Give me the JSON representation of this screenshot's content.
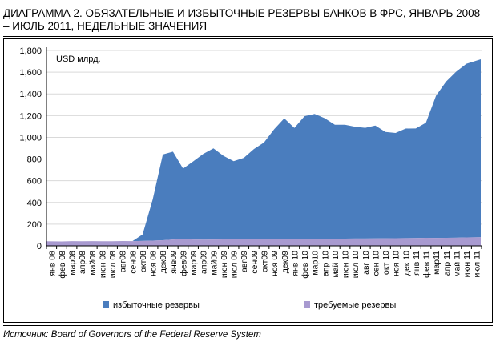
{
  "title": {
    "line1": "ДИАГРАММА 2. ОБЯЗАТЕЛЬНЫЕ И ИЗБЫТОЧНЫЕ РЕЗЕРВЫ БАНКОВ В ФРС, ЯНВАРЬ 2008",
    "line2": "– ИЮЛЬ 2011, НЕДЕЛЬНЫЕ ЗНАЧЕНИЯ"
  },
  "source": "Источник: Board of Governors of the Federal Reserve System",
  "colors": {
    "excess": "#4a7dbe",
    "required": "#a89ad0",
    "grid": "#d9d9d9",
    "axis": "#000000"
  },
  "chart_data": {
    "type": "area",
    "stacked": true,
    "unit_label": "USD млрд.",
    "ylim": [
      0,
      1800
    ],
    "yticks": [
      "0",
      "200",
      "400",
      "600",
      "800",
      "1,000",
      "1,200",
      "1,400",
      "1,600",
      "1,800"
    ],
    "grid": true,
    "legend_position": "bottom",
    "x_tick_labels": [
      "янв 08",
      "фев 08",
      "мар08",
      "апр08",
      "май08",
      "июн 08",
      "июл 08",
      "авг08",
      "сен08",
      "окт08",
      "ноя 08",
      "дек08",
      "янв09",
      "фев09",
      "мар09",
      "апр09",
      "май09",
      "июн 09",
      "июл 09",
      "авг09",
      "сен09",
      "окт09",
      "ноя 09",
      "дек09",
      "янв 10",
      "фев 10",
      "мар10",
      "апр 10",
      "май 10",
      "июн 10",
      "июл 10",
      "авг 10",
      "сен 10",
      "окт 10",
      "ноя 10",
      "дек 10",
      "янв 11",
      "фев 11",
      "мар11",
      "апр 11",
      "май 11",
      "июн 11",
      "июл 11"
    ],
    "series": [
      {
        "name": "требуемые резервы",
        "color_key": "required",
        "values": [
          42,
          41,
          43,
          42,
          43,
          42,
          42,
          44,
          43,
          45,
          48,
          52,
          58,
          62,
          58,
          57,
          58,
          59,
          60,
          61,
          62,
          63,
          64,
          65,
          66,
          64,
          65,
          66,
          66,
          66,
          67,
          67,
          68,
          69,
          70,
          71,
          72,
          74,
          73,
          74,
          75,
          77,
          79
        ]
      },
      {
        "name": "избыточные резервы",
        "color_key": "excess",
        "values": [
          0,
          0,
          0,
          0,
          0,
          0,
          0,
          0,
          0,
          60,
          380,
          790,
          810,
          650,
          720,
          790,
          840,
          770,
          720,
          750,
          830,
          890,
          1010,
          1110,
          1020,
          1130,
          1150,
          1110,
          1050,
          1050,
          1030,
          1020,
          1040,
          980,
          970,
          1010,
          1010,
          1060,
          1310,
          1440,
          1530,
          1600,
          1640
        ]
      }
    ]
  }
}
